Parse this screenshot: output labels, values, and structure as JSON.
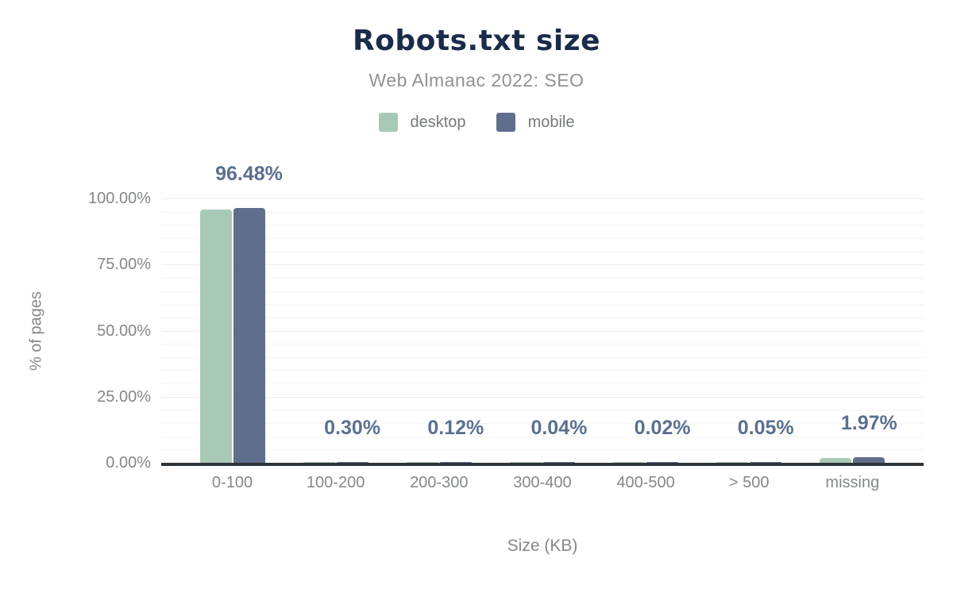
{
  "header": {
    "title": "Robots.txt size",
    "subtitle": "Web Almanac 2022: SEO"
  },
  "legend": {
    "items": [
      {
        "label": "desktop",
        "color": "#a9c9b7"
      },
      {
        "label": "mobile",
        "color": "#5f6e8b"
      }
    ]
  },
  "chart_data": {
    "type": "bar",
    "title": "Robots.txt size",
    "subtitle": "Web Almanac 2022: SEO",
    "categories": [
      "0-100",
      "100-200",
      "200-300",
      "300-400",
      "400-500",
      "> 500",
      "missing"
    ],
    "series": [
      {
        "name": "desktop",
        "color": "#a9c9b7",
        "values": [
          95.8,
          0.3,
          0.12,
          0.04,
          0.02,
          0.05,
          1.8
        ]
      },
      {
        "name": "mobile",
        "color": "#5f6e8b",
        "values": [
          96.48,
          0.3,
          0.12,
          0.04,
          0.02,
          0.05,
          1.97
        ]
      }
    ],
    "desktop_values_estimated": true,
    "data_labels": [
      "96.48%",
      "0.30%",
      "0.12%",
      "0.04%",
      "0.02%",
      "0.05%",
      "1.97%"
    ],
    "data_label_series": "mobile",
    "xlabel": "Size (KB)",
    "ylabel": "% of pages",
    "ylim": [
      0,
      100
    ],
    "y_ticks": [
      {
        "label": "100.00%",
        "value": 100
      },
      {
        "label": "75.00%",
        "value": 75
      },
      {
        "label": "50.00%",
        "value": 50
      },
      {
        "label": "25.00%",
        "value": 25
      },
      {
        "label": "0.00%",
        "value": 0
      }
    ],
    "grid": {
      "minor_step_pct": 5,
      "major_step_pct": 25,
      "minor_color": "#f5f5f5",
      "major_color": "#ececec"
    },
    "legend_position": "top",
    "colors": {
      "title": "#1c2b4a",
      "subtitle": "#8f9296",
      "axis_text": "#84878a",
      "data_label": "#5a7090",
      "axis_line": "#2e3338",
      "background": "#ffffff"
    }
  }
}
